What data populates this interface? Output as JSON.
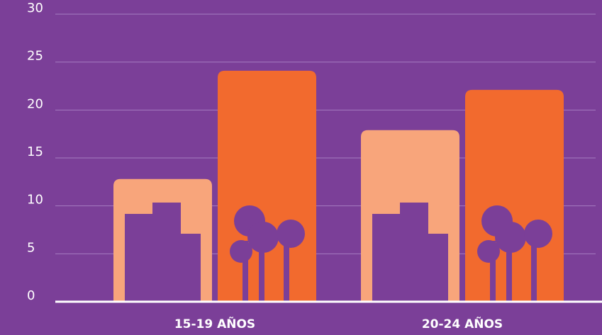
{
  "chart_data": {
    "type": "bar",
    "categories": [
      "15-19 AÑOS",
      "20-24 AÑOS"
    ],
    "series": [
      {
        "color": "#f8a57b",
        "values": [
          12.8,
          17.9
        ]
      },
      {
        "color": "#f26a2e",
        "values": [
          24.1,
          22.1
        ]
      }
    ],
    "ylim": [
      0,
      30
    ],
    "yticks": [
      0,
      5,
      10,
      15,
      20,
      25,
      30
    ],
    "grid": true
  }
}
